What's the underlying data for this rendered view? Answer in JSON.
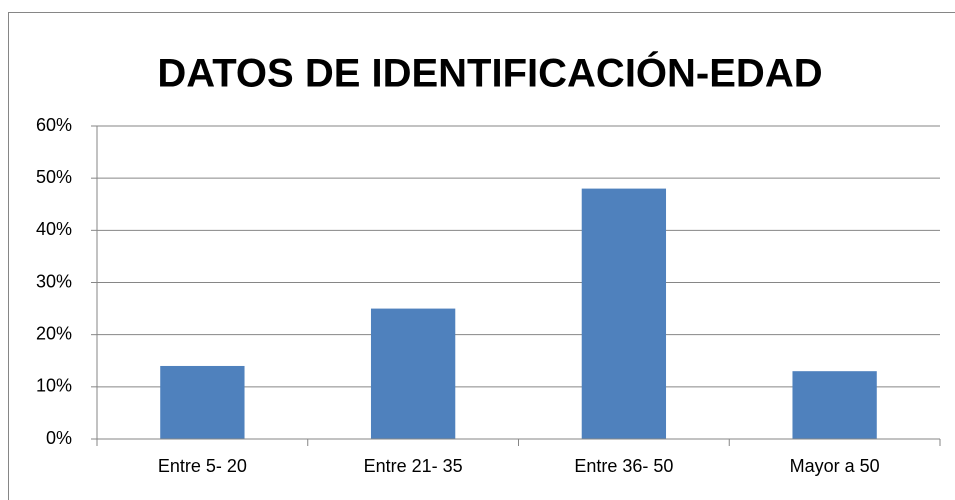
{
  "chart_data": {
    "type": "bar",
    "title": "DATOS DE IDENTIFICACIÓN-EDAD",
    "categories": [
      "Entre 5- 20",
      "Entre 21- 35",
      "Entre 36- 50",
      "Mayor a 50"
    ],
    "values": [
      14,
      25,
      48,
      13
    ],
    "color": "#4f81bd",
    "ylim": [
      0,
      60
    ],
    "yticks": [
      {
        "value": 0,
        "label": "0%"
      },
      {
        "value": 10,
        "label": "10%"
      },
      {
        "value": 20,
        "label": "20%"
      },
      {
        "value": 30,
        "label": "30%"
      },
      {
        "value": 40,
        "label": "40%"
      },
      {
        "value": 50,
        "label": "50%"
      },
      {
        "value": 60,
        "label": "60%"
      }
    ],
    "grid": true
  }
}
